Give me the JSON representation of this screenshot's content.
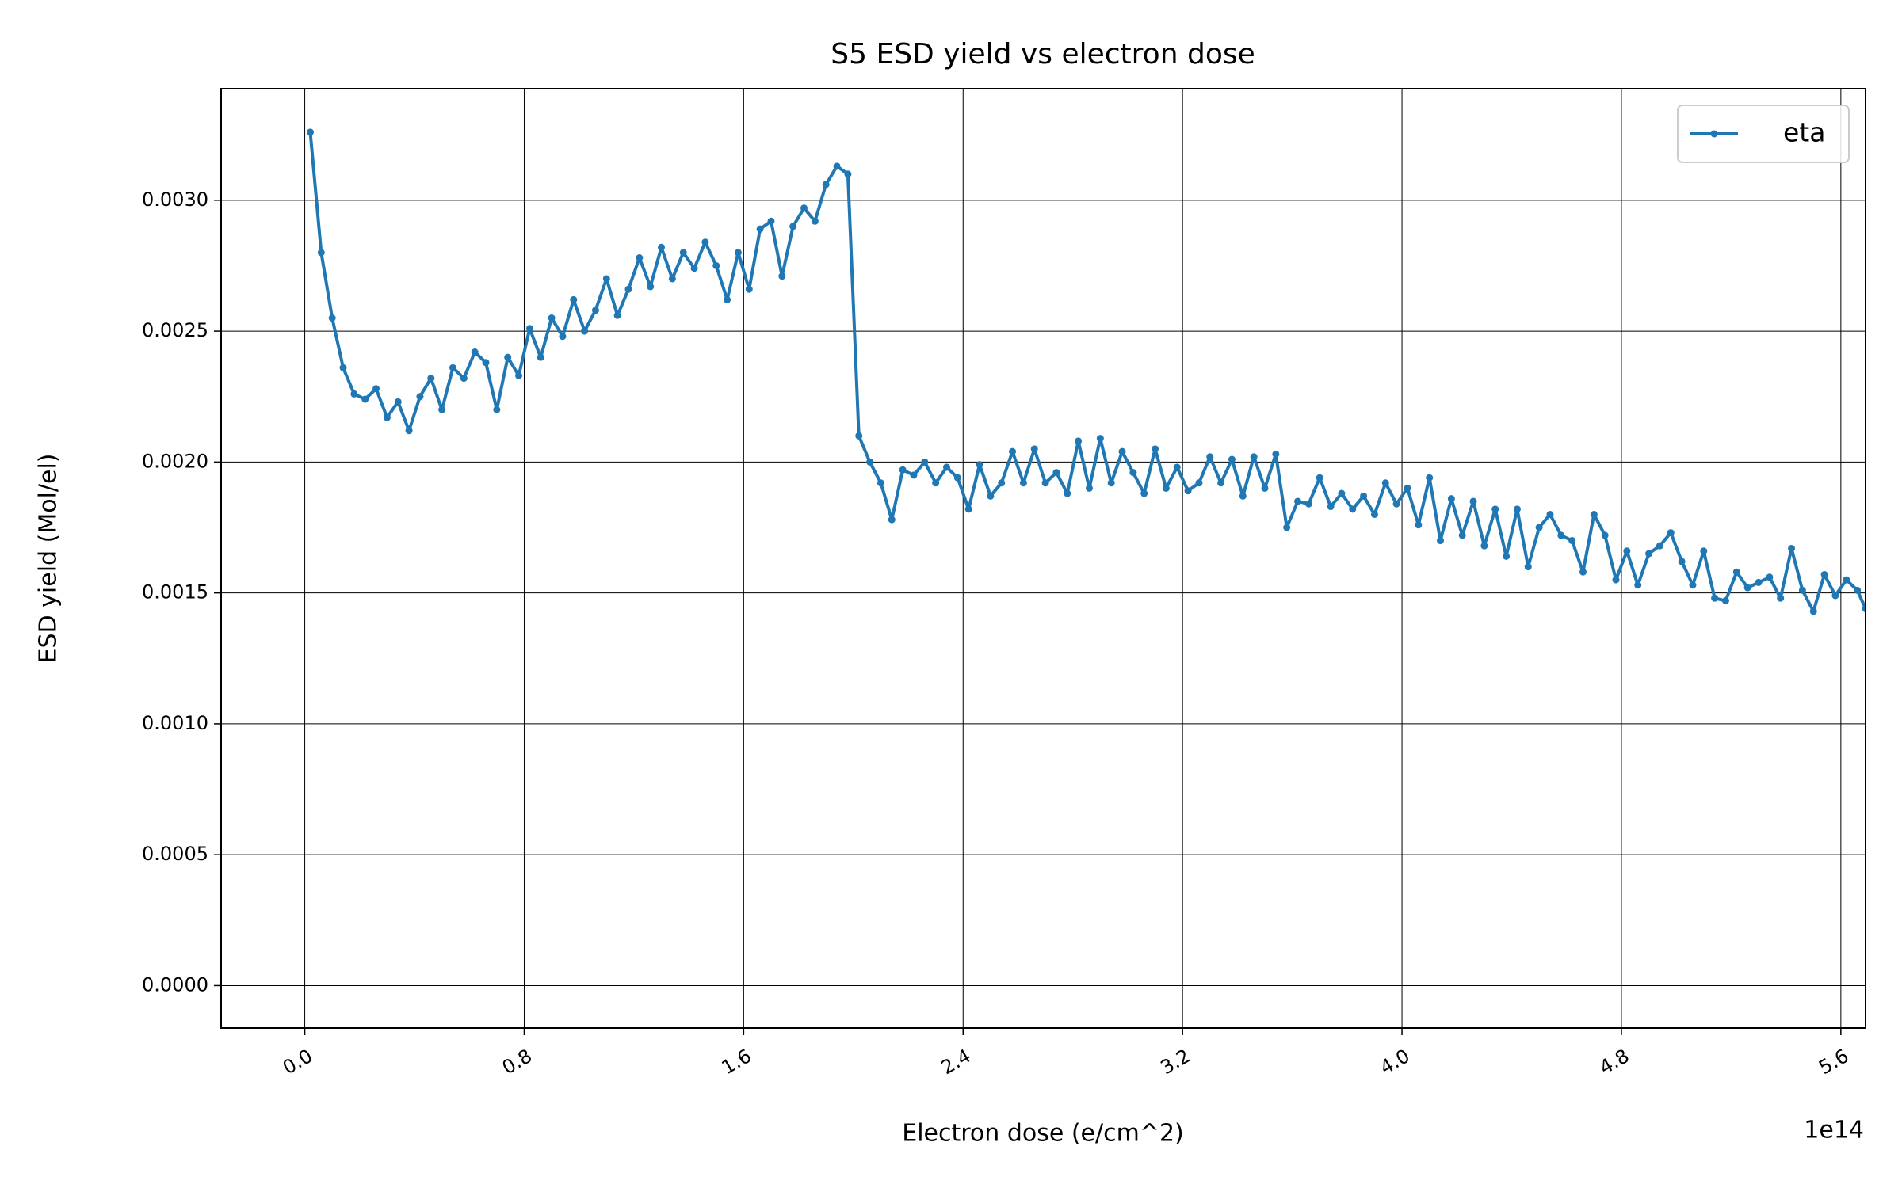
{
  "chart_data": {
    "type": "line",
    "title": "S5 ESD yield vs electron dose",
    "x_label": "Electron dose (e/cm^2)",
    "y_label": "ESD yield (Mol/el)",
    "x_offset_label": "1e14",
    "x": [
      0.02,
      0.06,
      0.1,
      0.14,
      0.18,
      0.22,
      0.26,
      0.3,
      0.34,
      0.38,
      0.42,
      0.46,
      0.5,
      0.54,
      0.58,
      0.62,
      0.66,
      0.7,
      0.74,
      0.78,
      0.82,
      0.86,
      0.9,
      0.94,
      0.98,
      1.02,
      1.06,
      1.1,
      1.14,
      1.18,
      1.22,
      1.26,
      1.3,
      1.34,
      1.38,
      1.42,
      1.46,
      1.5,
      1.54,
      1.58,
      1.62,
      1.66,
      1.7,
      1.74,
      1.78,
      1.82,
      1.86,
      1.9,
      1.94,
      1.98,
      2.02,
      2.06,
      2.1,
      2.14,
      2.18,
      2.22,
      2.26,
      2.3,
      2.34,
      2.38,
      2.42,
      2.46,
      2.5,
      2.54,
      2.58,
      2.62,
      2.66,
      2.7,
      2.74,
      2.78,
      2.82,
      2.86,
      2.9,
      2.94,
      2.98,
      3.02,
      3.06,
      3.1,
      3.14,
      3.18,
      3.22,
      3.26,
      3.3,
      3.34,
      3.38,
      3.42,
      3.46,
      3.5,
      3.54,
      3.58,
      3.62,
      3.66,
      3.7,
      3.74,
      3.78,
      3.82,
      3.86,
      3.9,
      3.94,
      3.98,
      4.02,
      4.06,
      4.1,
      4.14,
      4.18,
      4.22,
      4.26,
      4.3,
      4.34,
      4.38,
      4.42,
      4.46,
      4.5,
      4.54,
      4.58,
      4.62,
      4.66,
      4.7,
      4.74,
      4.78,
      4.82,
      4.86,
      4.9,
      4.94,
      4.98,
      5.02,
      5.06,
      5.1,
      5.14,
      5.18,
      5.22,
      5.26,
      5.3,
      5.34,
      5.38,
      5.42,
      5.46,
      5.5,
      5.54,
      5.58,
      5.62,
      5.66,
      5.69
    ],
    "series": [
      {
        "name": "eta",
        "color": "#1f77b4",
        "values": [
          0.00326,
          0.0028,
          0.00255,
          0.00236,
          0.00226,
          0.00224,
          0.00228,
          0.00217,
          0.00223,
          0.00212,
          0.00225,
          0.00232,
          0.0022,
          0.00236,
          0.00232,
          0.00242,
          0.00238,
          0.0022,
          0.0024,
          0.00233,
          0.00251,
          0.0024,
          0.00255,
          0.00248,
          0.00262,
          0.0025,
          0.00258,
          0.0027,
          0.00256,
          0.00266,
          0.00278,
          0.00267,
          0.00282,
          0.0027,
          0.0028,
          0.00274,
          0.00284,
          0.00275,
          0.00262,
          0.0028,
          0.00266,
          0.00289,
          0.00292,
          0.00271,
          0.0029,
          0.00297,
          0.00292,
          0.00306,
          0.00313,
          0.0031,
          0.0021,
          0.002,
          0.00192,
          0.00178,
          0.00197,
          0.00195,
          0.002,
          0.00192,
          0.00198,
          0.00194,
          0.00182,
          0.00199,
          0.00187,
          0.00192,
          0.00204,
          0.00192,
          0.00205,
          0.00192,
          0.00196,
          0.00188,
          0.00208,
          0.0019,
          0.00209,
          0.00192,
          0.00204,
          0.00196,
          0.00188,
          0.00205,
          0.0019,
          0.00198,
          0.00189,
          0.00192,
          0.00202,
          0.00192,
          0.00201,
          0.00187,
          0.00202,
          0.0019,
          0.00203,
          0.00175,
          0.00185,
          0.00184,
          0.00194,
          0.00183,
          0.00188,
          0.00182,
          0.00187,
          0.0018,
          0.00192,
          0.00184,
          0.0019,
          0.00176,
          0.00194,
          0.0017,
          0.00186,
          0.00172,
          0.00185,
          0.00168,
          0.00182,
          0.00164,
          0.00182,
          0.0016,
          0.00175,
          0.0018,
          0.00172,
          0.0017,
          0.00158,
          0.0018,
          0.00172,
          0.00155,
          0.00166,
          0.00153,
          0.00165,
          0.00168,
          0.00173,
          0.00162,
          0.00153,
          0.00166,
          0.00148,
          0.00147,
          0.00158,
          0.00152,
          0.00154,
          0.00156,
          0.00148,
          0.00167,
          0.00151,
          0.00143,
          0.00157,
          0.00149,
          0.00155,
          0.00151,
          0.00144
        ]
      }
    ],
    "xlim": [
      -0.305,
      5.69
    ],
    "ylim": [
      -0.000162,
      0.003426
    ],
    "xticks": [
      {
        "value": 0,
        "label": "0.0"
      },
      0.8,
      1.6,
      2.4,
      3.2,
      {
        "value": 4,
        "label": "4.0"
      },
      4.8,
      5.6
    ],
    "yticks": [
      {
        "value": 0,
        "label": "0.0000"
      },
      {
        "value": 0.0005,
        "label": "0.0005"
      },
      {
        "value": 0.001,
        "label": "0.0010"
      },
      {
        "value": 0.0015,
        "label": "0.0015"
      },
      {
        "value": 0.002,
        "label": "0.0020"
      },
      {
        "value": 0.0025,
        "label": "0.0025"
      },
      {
        "value": 0.003,
        "label": "0.0030"
      }
    ],
    "grid": true,
    "legend": "upper right",
    "markers": true
  }
}
